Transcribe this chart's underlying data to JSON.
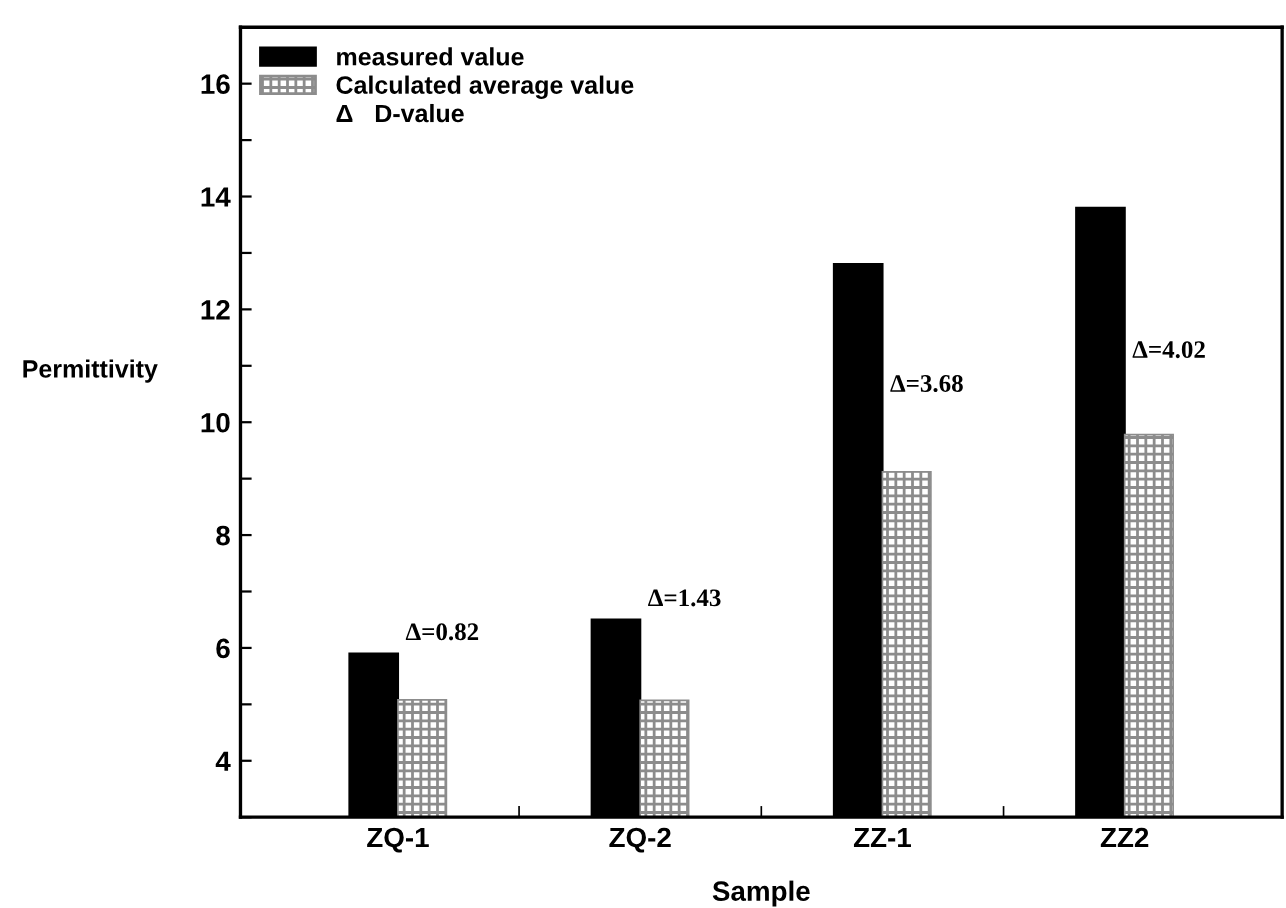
{
  "chart_data": {
    "type": "bar",
    "xlabel": "Sample",
    "ylabel": "Permittivity",
    "categories": [
      "ZQ-1",
      "ZQ-2",
      "ZZ-1",
      "ZZ2"
    ],
    "series": [
      {
        "name": "measured value",
        "color": "#000000",
        "values": [
          5.9,
          6.5,
          12.8,
          13.8
        ]
      },
      {
        "name": "Calculated average value",
        "color": "#8c8c8c",
        "values": [
          5.08,
          5.07,
          9.12,
          9.78
        ]
      }
    ],
    "ylim": [
      3,
      17
    ],
    "yticks": [
      {
        "value": 3,
        "label": null
      },
      4,
      {
        "value": 5,
        "label": null
      },
      6,
      {
        "value": 7,
        "label": null
      },
      8,
      {
        "value": 9,
        "label": null
      },
      10,
      {
        "value": 11,
        "label": null
      },
      12,
      {
        "value": 13,
        "label": null
      },
      14,
      {
        "value": 15,
        "label": null
      },
      16,
      {
        "value": 17,
        "label": null
      }
    ],
    "annotations": [
      "Δ   D-value",
      {
        "text": "Δ=0.82",
        "x": "ZQ-1",
        "y": 5.9
      },
      {
        "text": "Δ=1.43",
        "x": "ZQ-2",
        "y": 6.5
      },
      {
        "text": "Δ=3.68",
        "x": "ZZ-1",
        "y": 10.3
      },
      {
        "text": "Δ=4.02",
        "x": "ZZ2",
        "y": 10.9
      }
    ],
    "grid": false,
    "legend": "top left"
  }
}
